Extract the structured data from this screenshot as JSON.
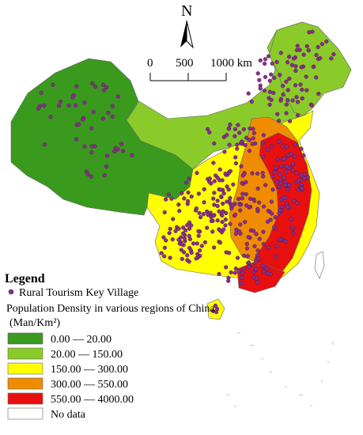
{
  "north_arrow": {
    "letter": "N"
  },
  "scale_bar": {
    "tick_labels": [
      "0",
      "500",
      "1000 km"
    ]
  },
  "legend": {
    "title": "Legend",
    "point_label": "Rural Tourism Key Village",
    "point_color": "#8B2D8E",
    "density_title_line1": "Population Density in various regions of China",
    "density_title_line2": "(Man/Km²)",
    "classes": [
      {
        "label": "0.00 — 20.00",
        "color": "#3A9A1E"
      },
      {
        "label": "20.00 — 150.00",
        "color": "#8ACB2A"
      },
      {
        "label": "150.00 — 300.00",
        "color": "#FFFF00"
      },
      {
        "label": "300.00 — 550.00",
        "color": "#F08C00"
      },
      {
        "label": "550.00 — 4000.00",
        "color": "#E8100F"
      },
      {
        "label": "No data",
        "color": "#FFFFFF"
      }
    ]
  },
  "map_colors": {
    "outline": "#666666"
  }
}
